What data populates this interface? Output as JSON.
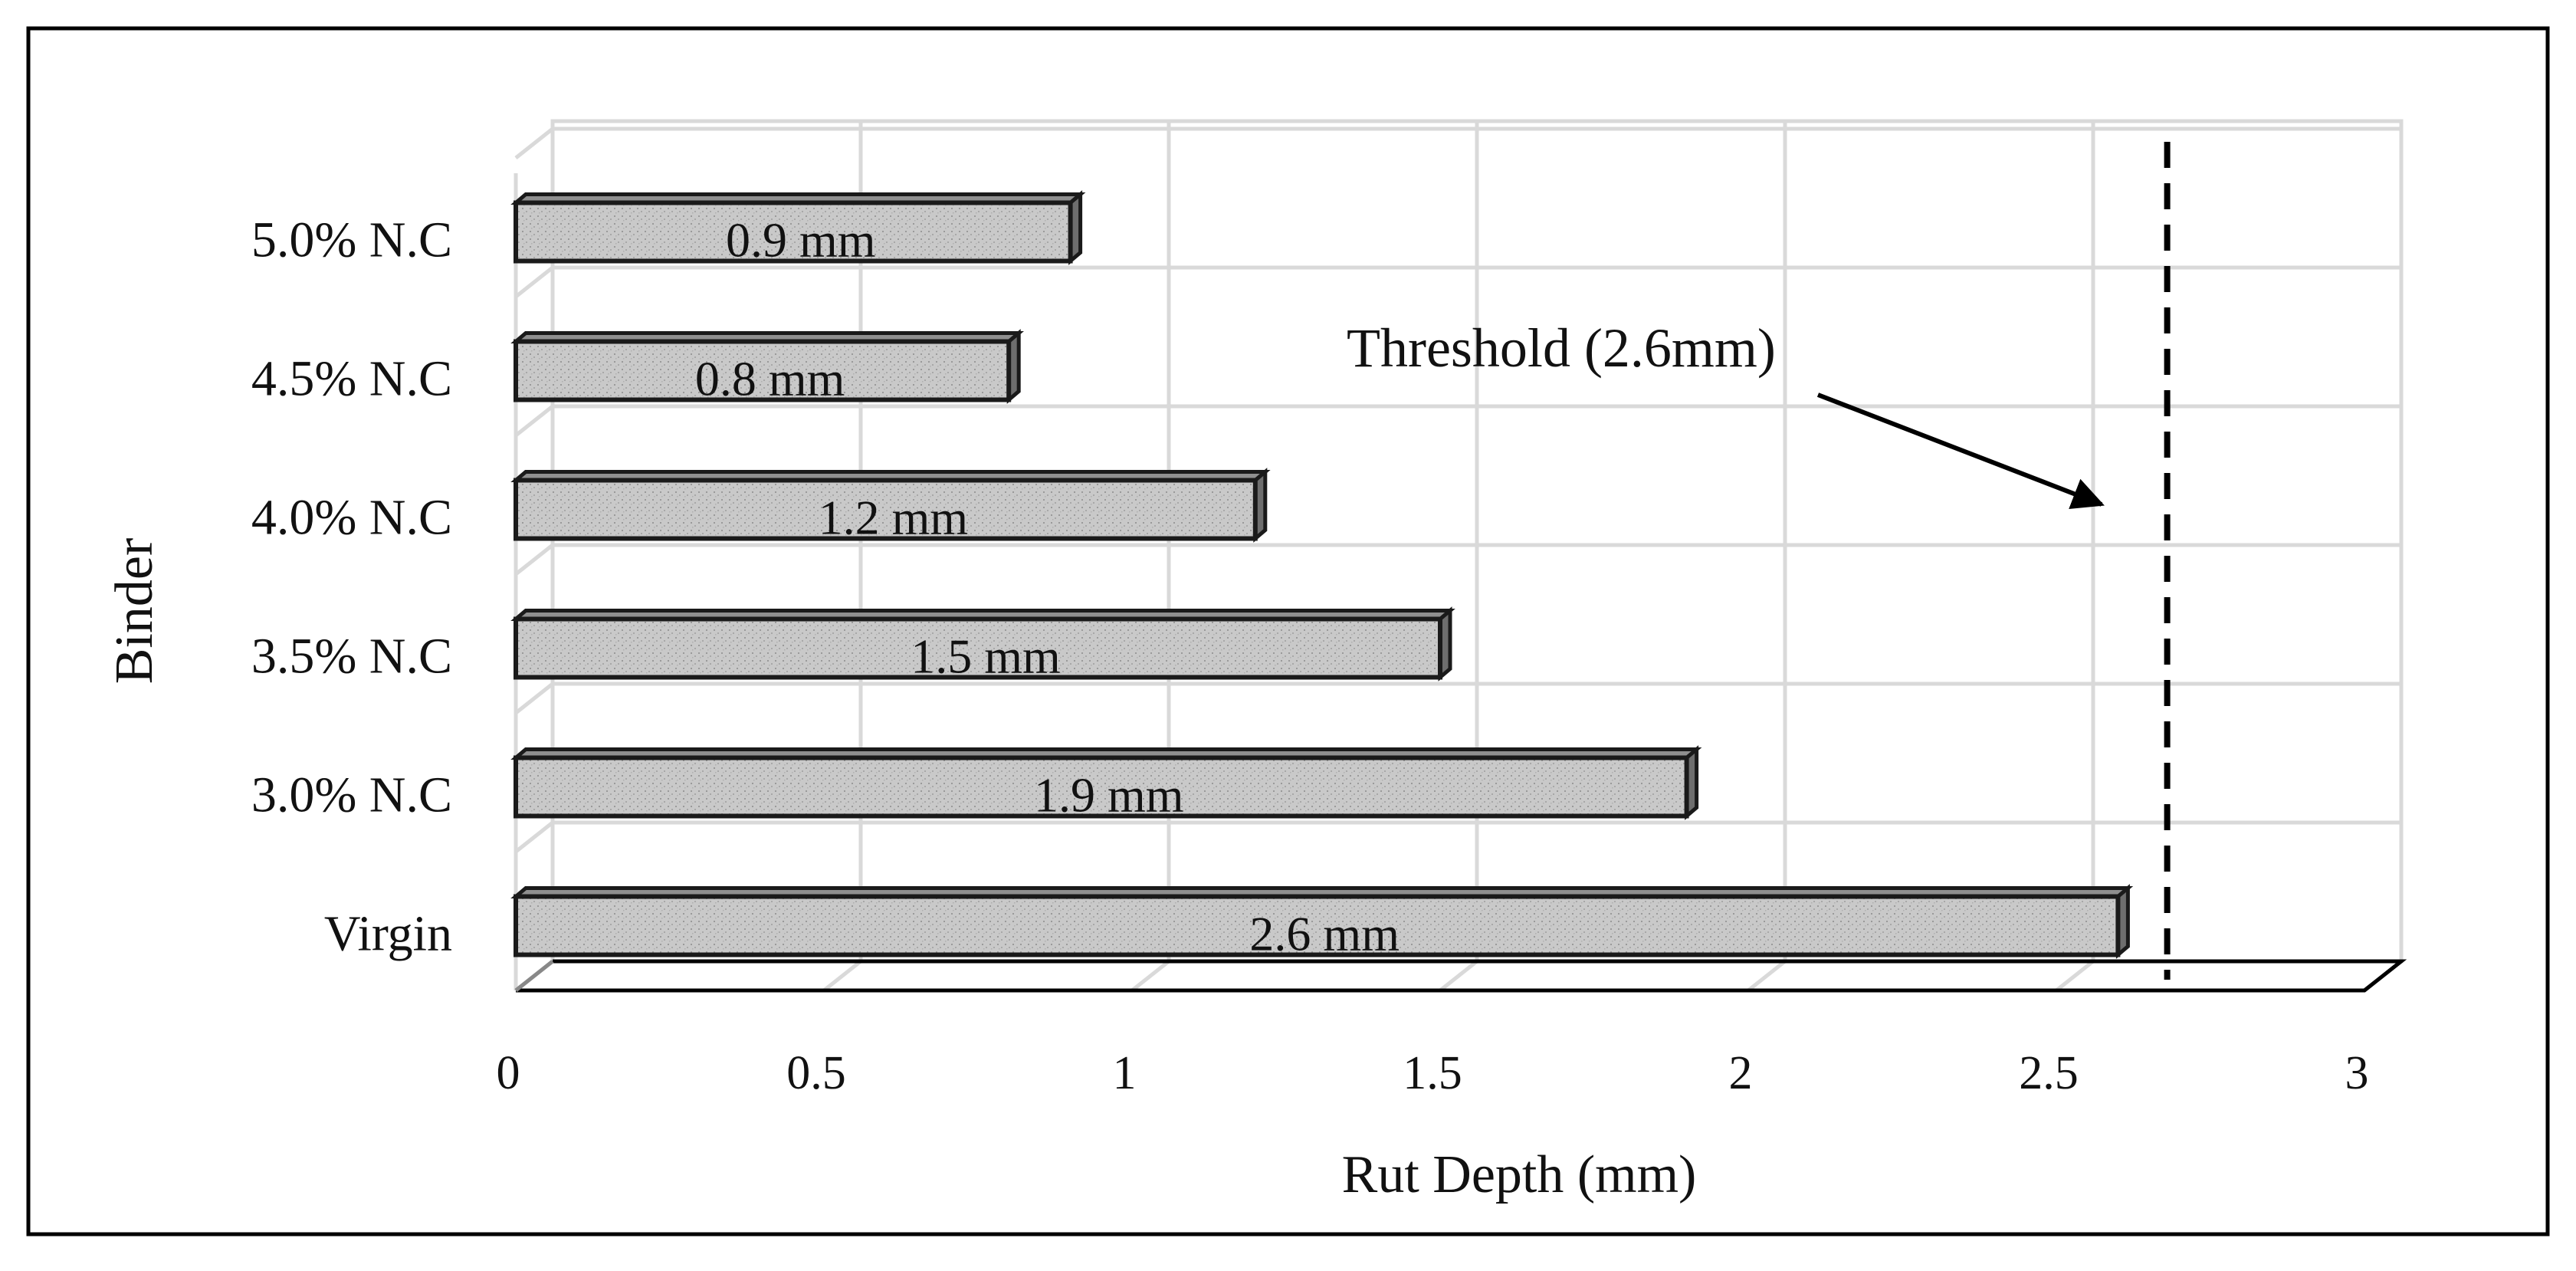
{
  "chart_data": {
    "type": "bar",
    "orientation": "horizontal",
    "style": "3d",
    "categories": [
      "Virgin",
      "3.0% N.C",
      "3.5% N.C",
      "4.0% N.C",
      "4.5% N.C",
      "5.0% N.C"
    ],
    "values": [
      2.6,
      1.9,
      1.5,
      1.2,
      0.8,
      0.9
    ],
    "data_labels": [
      "2.6 mm",
      "1.9 mm",
      "1.5 mm",
      "1.2 mm",
      "0.8 mm",
      "0.9 mm"
    ],
    "xlabel": "Rut Depth (mm)",
    "ylabel": "Binder",
    "xlim": [
      0,
      3
    ],
    "xticks": [
      "0",
      "0.5",
      "1",
      "1.5",
      "2",
      "2.5",
      "3"
    ],
    "grid": true,
    "threshold": {
      "value": 2.65,
      "label": "Threshold (2.6mm)",
      "line_style": "dashed"
    },
    "colors": {
      "bar_fill": "#c8c8c8",
      "bar_edge": "#1a1a1a",
      "grid": "#d9d9d9",
      "frame": "#000000"
    }
  }
}
